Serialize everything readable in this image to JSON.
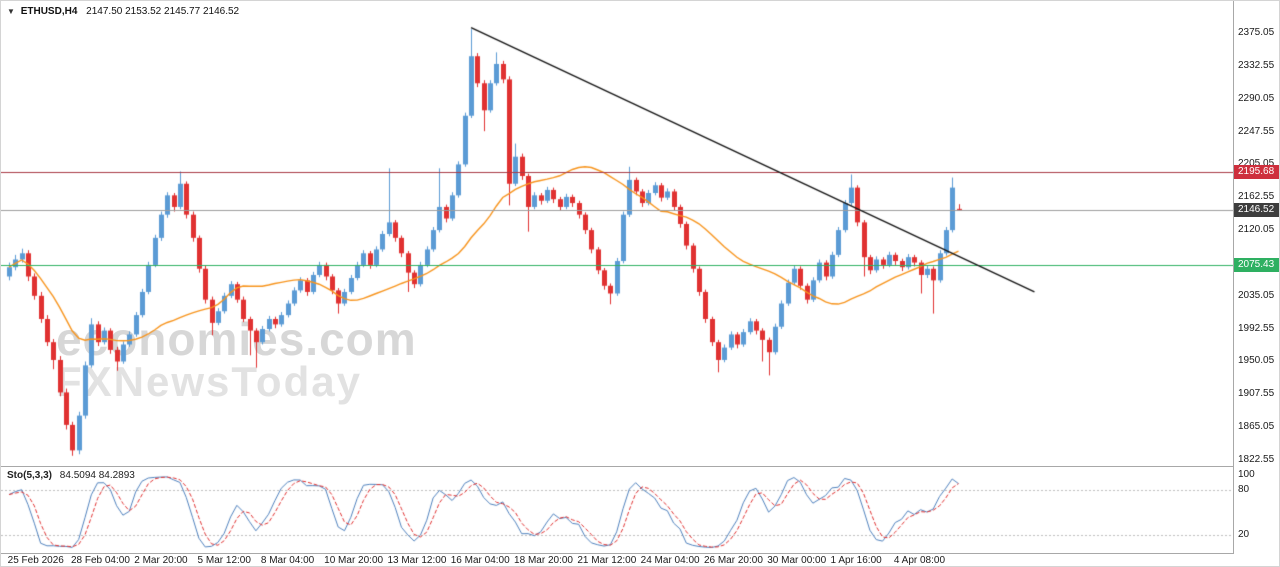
{
  "header": {
    "symbol": "ETHUSD,H4",
    "ohlc": "2147.50 2153.52 2145.77 2146.52"
  },
  "watermark": {
    "line1": "economies.com",
    "line2": "FXNewsToday"
  },
  "indicator": {
    "label": "Sto(5,3,3)",
    "values": "84.5094 84.2893"
  },
  "chart_data": {
    "type": "candlestick",
    "symbol": "ETHUSD",
    "timeframe": "H4",
    "last_bar": {
      "open": 2147.5,
      "high": 2153.52,
      "low": 2145.77,
      "close": 2146.52
    },
    "price_axis_ticks": [
      2375.05,
      2332.55,
      2290.05,
      2247.55,
      2205.05,
      2162.55,
      2120.05,
      2077.55,
      2035.05,
      1992.55,
      1950.05,
      1907.55,
      1865.05,
      1822.55
    ],
    "time_axis_labels": [
      "25 Feb 2026",
      "28 Feb 04:00",
      "2 Mar 20:00",
      "5 Mar 12:00",
      "8 Mar 04:00",
      "10 Mar 20:00",
      "13 Mar 12:00",
      "16 Mar 04:00",
      "18 Mar 20:00",
      "21 Mar 12:00",
      "24 Mar 04:00",
      "26 Mar 20:00",
      "30 Mar 00:00",
      "1 Apr 16:00",
      "4 Apr 08:00"
    ],
    "time_label_first_bar": 2,
    "time_label_every_n_bars": 10,
    "candles_ohlc": [
      [
        2060,
        2078,
        2055,
        2072
      ],
      [
        2072,
        2088,
        2068,
        2082
      ],
      [
        2082,
        2096,
        2078,
        2090
      ],
      [
        2090,
        2094,
        2054,
        2060
      ],
      [
        2060,
        2064,
        2030,
        2035
      ],
      [
        2035,
        2040,
        2000,
        2005
      ],
      [
        2005,
        2010,
        1970,
        1975
      ],
      [
        1975,
        1979,
        1940,
        1952
      ],
      [
        1952,
        1957,
        1905,
        1910
      ],
      [
        1910,
        1915,
        1862,
        1868
      ],
      [
        1868,
        1872,
        1828,
        1835
      ],
      [
        1835,
        1885,
        1830,
        1880
      ],
      [
        1880,
        1950,
        1876,
        1945
      ],
      [
        1945,
        2006,
        1942,
        1998
      ],
      [
        1998,
        2002,
        1970,
        1975
      ],
      [
        1975,
        1994,
        1972,
        1990
      ],
      [
        1990,
        1993,
        1960,
        1965
      ],
      [
        1965,
        1969,
        1938,
        1950
      ],
      [
        1950,
        1976,
        1947,
        1972
      ],
      [
        1972,
        1989,
        1969,
        1985
      ],
      [
        1985,
        2014,
        1982,
        2010
      ],
      [
        2010,
        2044,
        2007,
        2040
      ],
      [
        2040,
        2079,
        2037,
        2075
      ],
      [
        2075,
        2114,
        2072,
        2110
      ],
      [
        2110,
        2144,
        2106,
        2140
      ],
      [
        2140,
        2169,
        2136,
        2165
      ],
      [
        2165,
        2168,
        2144,
        2150
      ],
      [
        2150,
        2196,
        2147,
        2180
      ],
      [
        2180,
        2183,
        2135,
        2140
      ],
      [
        2140,
        2144,
        2105,
        2110
      ],
      [
        2110,
        2113,
        2065,
        2070
      ],
      [
        2070,
        2074,
        2025,
        2030
      ],
      [
        2030,
        2034,
        1984,
        2000
      ],
      [
        2000,
        2019,
        1997,
        2015
      ],
      [
        2015,
        2039,
        2012,
        2035
      ],
      [
        2035,
        2054,
        2032,
        2050
      ],
      [
        2050,
        2053,
        2026,
        2030
      ],
      [
        2030,
        2034,
        2001,
        2005
      ],
      [
        2005,
        2008,
        1958,
        1990
      ],
      [
        1990,
        1993,
        1942,
        1975
      ],
      [
        1975,
        1996,
        1972,
        1992
      ],
      [
        1992,
        2009,
        1989,
        2005
      ],
      [
        2005,
        2008,
        1993,
        1998
      ],
      [
        1998,
        2014,
        1995,
        2010
      ],
      [
        2010,
        2029,
        2007,
        2025
      ],
      [
        2025,
        2046,
        2022,
        2042
      ],
      [
        2042,
        2059,
        2039,
        2055
      ],
      [
        2055,
        2058,
        2035,
        2040
      ],
      [
        2040,
        2066,
        2037,
        2062
      ],
      [
        2062,
        2079,
        2059,
        2075
      ],
      [
        2075,
        2078,
        2055,
        2060
      ],
      [
        2060,
        2063,
        2037,
        2042
      ],
      [
        2042,
        2045,
        2012,
        2025
      ],
      [
        2025,
        2044,
        2022,
        2040
      ],
      [
        2040,
        2062,
        2037,
        2058
      ],
      [
        2058,
        2079,
        2055,
        2075
      ],
      [
        2075,
        2094,
        2072,
        2090
      ],
      [
        2090,
        2093,
        2070,
        2075
      ],
      [
        2075,
        2099,
        2072,
        2095
      ],
      [
        2095,
        2119,
        2092,
        2115
      ],
      [
        2115,
        2200,
        2112,
        2130
      ],
      [
        2130,
        2133,
        2105,
        2110
      ],
      [
        2110,
        2113,
        2085,
        2090
      ],
      [
        2090,
        2093,
        2040,
        2065
      ],
      [
        2065,
        2068,
        2045,
        2050
      ],
      [
        2050,
        2079,
        2047,
        2075
      ],
      [
        2075,
        2099,
        2072,
        2095
      ],
      [
        2095,
        2124,
        2092,
        2120
      ],
      [
        2120,
        2200,
        2117,
        2150
      ],
      [
        2150,
        2153,
        2130,
        2135
      ],
      [
        2135,
        2169,
        2132,
        2165
      ],
      [
        2165,
        2209,
        2162,
        2205
      ],
      [
        2205,
        2272,
        2202,
        2268
      ],
      [
        2268,
        2380,
        2265,
        2345
      ],
      [
        2345,
        2349,
        2305,
        2310
      ],
      [
        2310,
        2314,
        2248,
        2275
      ],
      [
        2275,
        2314,
        2272,
        2310
      ],
      [
        2310,
        2350,
        2307,
        2335
      ],
      [
        2335,
        2339,
        2310,
        2315
      ],
      [
        2315,
        2319,
        2152,
        2180
      ],
      [
        2180,
        2232,
        2177,
        2215
      ],
      [
        2215,
        2219,
        2185,
        2190
      ],
      [
        2190,
        2193,
        2118,
        2150
      ],
      [
        2150,
        2169,
        2147,
        2165
      ],
      [
        2165,
        2168,
        2153,
        2158
      ],
      [
        2158,
        2176,
        2155,
        2172
      ],
      [
        2172,
        2175,
        2155,
        2160
      ],
      [
        2160,
        2163,
        2145,
        2150
      ],
      [
        2150,
        2167,
        2147,
        2163
      ],
      [
        2163,
        2166,
        2150,
        2155
      ],
      [
        2155,
        2158,
        2135,
        2140
      ],
      [
        2140,
        2143,
        2115,
        2120
      ],
      [
        2120,
        2123,
        2090,
        2095
      ],
      [
        2095,
        2098,
        2063,
        2068
      ],
      [
        2068,
        2071,
        2043,
        2048
      ],
      [
        2048,
        2051,
        2024,
        2038
      ],
      [
        2038,
        2084,
        2035,
        2080
      ],
      [
        2080,
        2144,
        2077,
        2140
      ],
      [
        2140,
        2202,
        2137,
        2185
      ],
      [
        2185,
        2188,
        2165,
        2170
      ],
      [
        2170,
        2173,
        2150,
        2155
      ],
      [
        2155,
        2172,
        2152,
        2168
      ],
      [
        2168,
        2182,
        2165,
        2178
      ],
      [
        2178,
        2181,
        2157,
        2162
      ],
      [
        2162,
        2174,
        2159,
        2170
      ],
      [
        2170,
        2173,
        2145,
        2150
      ],
      [
        2150,
        2153,
        2123,
        2128
      ],
      [
        2128,
        2131,
        2095,
        2100
      ],
      [
        2100,
        2103,
        2065,
        2070
      ],
      [
        2070,
        2073,
        2035,
        2040
      ],
      [
        2040,
        2043,
        2000,
        2005
      ],
      [
        2005,
        2008,
        1970,
        1975
      ],
      [
        1975,
        1978,
        1936,
        1952
      ],
      [
        1952,
        1972,
        1949,
        1968
      ],
      [
        1968,
        1989,
        1965,
        1985
      ],
      [
        1985,
        1988,
        1967,
        1972
      ],
      [
        1972,
        1992,
        1969,
        1988
      ],
      [
        1988,
        2006,
        1985,
        2002
      ],
      [
        2002,
        2005,
        1985,
        1990
      ],
      [
        1990,
        1993,
        1950,
        1978
      ],
      [
        1978,
        1981,
        1932,
        1962
      ],
      [
        1962,
        1999,
        1959,
        1995
      ],
      [
        1995,
        2029,
        1992,
        2025
      ],
      [
        2025,
        2056,
        2022,
        2052
      ],
      [
        2052,
        2074,
        2049,
        2070
      ],
      [
        2070,
        2073,
        2043,
        2048
      ],
      [
        2048,
        2051,
        2025,
        2030
      ],
      [
        2030,
        2059,
        2027,
        2055
      ],
      [
        2055,
        2082,
        2052,
        2078
      ],
      [
        2078,
        2081,
        2055,
        2060
      ],
      [
        2060,
        2092,
        2057,
        2088
      ],
      [
        2088,
        2124,
        2085,
        2120
      ],
      [
        2120,
        2159,
        2117,
        2155
      ],
      [
        2155,
        2192,
        2152,
        2175
      ],
      [
        2175,
        2178,
        2125,
        2130
      ],
      [
        2130,
        2133,
        2060,
        2085
      ],
      [
        2085,
        2088,
        2063,
        2068
      ],
      [
        2068,
        2086,
        2065,
        2082
      ],
      [
        2082,
        2085,
        2070,
        2075
      ],
      [
        2075,
        2092,
        2072,
        2088
      ],
      [
        2088,
        2091,
        2075,
        2080
      ],
      [
        2080,
        2083,
        2067,
        2072
      ],
      [
        2072,
        2089,
        2069,
        2085
      ],
      [
        2085,
        2088,
        2073,
        2078
      ],
      [
        2078,
        2081,
        2038,
        2062
      ],
      [
        2062,
        2074,
        2058,
        2070
      ],
      [
        2070,
        2073,
        2012,
        2055
      ],
      [
        2055,
        2094,
        2052,
        2090
      ],
      [
        2090,
        2124,
        2087,
        2120
      ],
      [
        2120,
        2188,
        2117,
        2175
      ],
      [
        2147.5,
        2153.52,
        2145.77,
        2146.52
      ]
    ],
    "moving_average": {
      "type": "SMA",
      "period": 25,
      "color": "#f7941d"
    },
    "trendline": {
      "from_bar": 73,
      "from_price": 2382,
      "to_bar": 162,
      "to_price": 2040,
      "color": "#151515"
    },
    "hlines": [
      {
        "name": "resistance",
        "value": 2195.68,
        "label": "2195.68",
        "color": "#a93a45",
        "badge_bg": "#ce2f3d"
      },
      {
        "name": "support",
        "value": 2075.43,
        "label": "2075.43",
        "color": "#2eb061",
        "badge_bg": "#2eb061"
      },
      {
        "name": "current-price",
        "value": 2146.52,
        "label": "2146.52",
        "color": "#9d9d9d",
        "badge_bg": "#3d3d3d"
      }
    ],
    "colors": {
      "up": "#5b9bd5",
      "down": "#e03131",
      "background": "#ffffff",
      "axis_text": "#1a1a1a"
    },
    "stochastic": {
      "name": "Stochastic",
      "params": [
        5,
        3,
        3
      ],
      "current_main": 84.5094,
      "current_signal": 84.2893,
      "levels": [
        80,
        20
      ],
      "axis_ticks": [
        100,
        80,
        20
      ],
      "main_color": "#4f81bd",
      "signal_color": "#e03131",
      "level_color": "#bdbdbd"
    }
  }
}
